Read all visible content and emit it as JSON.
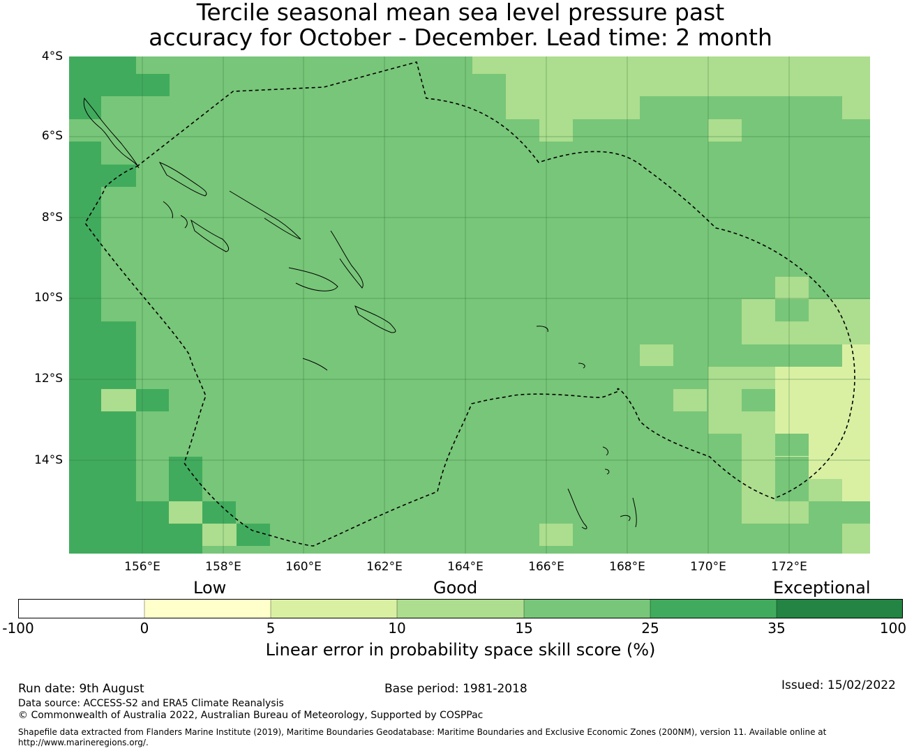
{
  "title": {
    "line1": "Tercile seasonal mean sea level pressure past",
    "line2": "accuracy for October - December. Lead time: 2 month"
  },
  "map": {
    "lat_labels": [
      "4°S",
      "6°S",
      "8°S",
      "10°S",
      "12°S",
      "14°S"
    ],
    "lon_labels": [
      "156°E",
      "158°E",
      "160°E",
      "162°E",
      "164°E",
      "166°E",
      "168°E",
      "170°E",
      "172°E"
    ],
    "colors": {
      "c25_35": "#41ab5d",
      "c15_25": "#78c679",
      "c10_15": "#addd8e",
      "c5_10": "#d9f0a3"
    }
  },
  "legend": {
    "categories": [
      "Low",
      "Good",
      "Exceptional"
    ],
    "ticks": [
      "-100",
      "0",
      "5",
      "10",
      "15",
      "25",
      "35",
      "100"
    ],
    "colors": [
      "#ffffff",
      "#ffffcc",
      "#d9f0a3",
      "#addd8e",
      "#78c679",
      "#41ab5d",
      "#238443"
    ],
    "label": "Linear error in probability space skill score (%)"
  },
  "footer": {
    "run_date": "Run date: 9th August",
    "base_period": "Base period: 1981-2018",
    "issued": "Issued: 15/02/2022",
    "data_source": "Data source: ACCESS-S2 and ERA5 Climate Reanalysis",
    "copyright": "© Commonwealth of Australia 2022, Australian Bureau of Meteorology, Supported by COSPPac",
    "shapefile": "Shapefile data extracted from Flanders Marine Institute (2019), Maritime Boundaries Geodatabase: Maritime Boundaries and Exclusive Economic Zones (200NM), version 11. Available online at http://www.marineregions.org/."
  }
}
